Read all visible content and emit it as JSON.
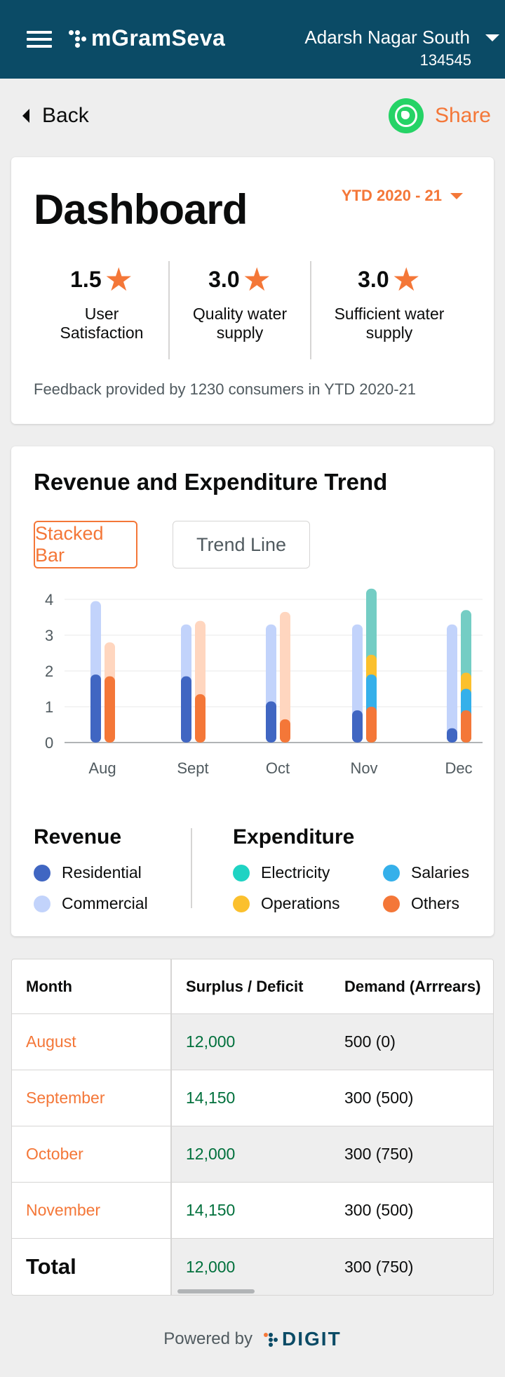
{
  "header": {
    "app_name": "mGramSeva",
    "location": "Adarsh Nagar South",
    "location_code": "134545"
  },
  "nav": {
    "back_label": "Back",
    "share_label": "Share"
  },
  "dashboard": {
    "title": "Dashboard",
    "period": "YTD 2020 - 21",
    "ratings": [
      {
        "value": "1.5",
        "label_line1": "User",
        "label_line2": "Satisfaction"
      },
      {
        "value": "3.0",
        "label_line1": "Quality water",
        "label_line2": "supply"
      },
      {
        "value": "3.0",
        "label_line1": "Sufficient water",
        "label_line2": "supply"
      }
    ],
    "feedback": "Feedback provided by 1230 consumers in YTD 2020-21"
  },
  "trend": {
    "title": "Revenue and Expenditure Trend",
    "toggle_active": "Stacked Bar",
    "toggle_inactive": "Trend Line",
    "legend": {
      "revenue_title": "Revenue",
      "expenditure_title": "Expenditure",
      "residential": "Residential",
      "commercial": "Commercial",
      "electricity": "Electricity",
      "salaries": "Salaries",
      "operations": "Operations",
      "others": "Others"
    }
  },
  "colors": {
    "residential": "#4066c2",
    "commercial": "#c2d3fb",
    "electricity": "#74cdc4",
    "salaries": "#35b0ea",
    "operations": "#fbc02d",
    "others": "#f47738",
    "expense_total": "#ffd6bf",
    "accent": "#f47738",
    "header": "#0b4b66"
  },
  "chart_data": {
    "type": "bar",
    "categories": [
      "Aug",
      "Sept",
      "Oct",
      "Nov",
      "Dec"
    ],
    "ylim": [
      0,
      4
    ],
    "yticks": [
      0,
      1,
      2,
      3,
      4
    ],
    "revenue": {
      "residential": [
        1.9,
        1.85,
        1.15,
        0.9,
        0.4
      ],
      "total": [
        3.95,
        3.3,
        3.3,
        3.3,
        3.3
      ]
    },
    "expenditure": {
      "others": [
        1.85,
        1.35,
        0.65,
        1.0,
        0.9
      ],
      "salaries": [
        0,
        0,
        0,
        0.9,
        0.6
      ],
      "operations": [
        0,
        0,
        0,
        0.55,
        0.45
      ],
      "electricity": [
        0,
        0,
        0,
        1.85,
        1.75
      ],
      "total": [
        2.8,
        3.4,
        3.65,
        4.2,
        3.65
      ]
    }
  },
  "table": {
    "headers": [
      "Month",
      "Surplus / Deficit",
      "Demand (Arrrears)"
    ],
    "rows": [
      {
        "month": "August",
        "surplus": "12,000",
        "demand": "500 (0)"
      },
      {
        "month": "September",
        "surplus": "14,150",
        "demand": "300 (500)"
      },
      {
        "month": "October",
        "surplus": "12,000",
        "demand": "300 (750)"
      },
      {
        "month": "November",
        "surplus": "14,150",
        "demand": "300 (500)"
      }
    ],
    "total": {
      "label": "Total",
      "surplus": "12,000",
      "demand": "300 (750)"
    }
  },
  "footer": {
    "powered_by": "Powered by",
    "brand": "DIGIT"
  }
}
